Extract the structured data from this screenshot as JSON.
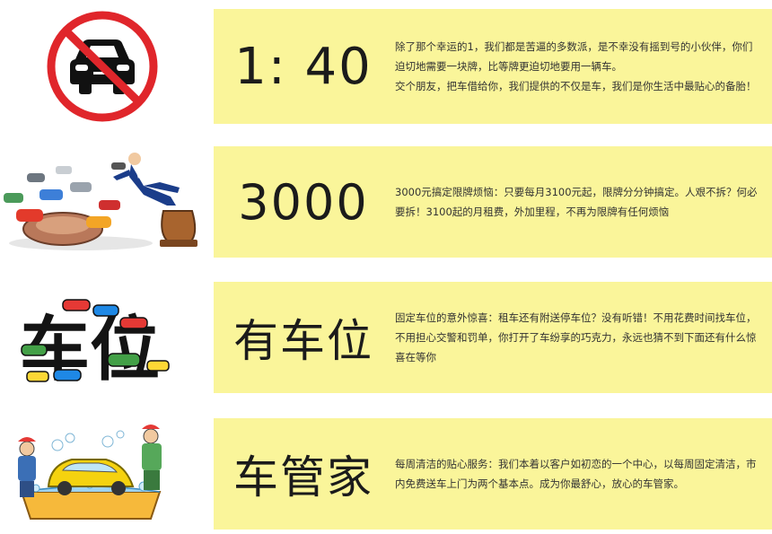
{
  "colors": {
    "card": "#faf59a",
    "no_sign_red": "#e0262b",
    "text": "#1b1b1b"
  },
  "rows": [
    {
      "headline": "1: 40",
      "icon": "no-car-sign-icon",
      "lines": [
        "除了那个幸运的1，我们都是苦逼的多数派，是不幸没有摇到号的小伙伴，你们迫切地需要一块牌，比等牌更迫切地要用一辆车。",
        "交个朋友，把车借给你，我们提供的不仅是车，我们是你生活中最贴心的备胎！"
      ]
    },
    {
      "headline": "3000",
      "icon": "car-stamp-illustration",
      "lines": [
        "3000元搞定限牌烦恼：只要每月3100元起，限牌分分钟搞定。人艰不拆？何必要拆！3100起的月租费，外加里程，不再为限牌有任何烦恼"
      ]
    },
    {
      "headline": "有车位",
      "icon": "parking-space-illustration",
      "lines": [
        "固定车位的意外惊喜：租车还有附送停车位？没有听错！不用花费时间找车位，不用担心交警和罚单，你打开了车纷享的巧克力，永远也猜不到下面还有什么惊喜在等你"
      ]
    },
    {
      "headline": "车管家",
      "icon": "car-wash-illustration",
      "lines": [
        "每周清洁的贴心服务：我们本着以客户如初恋的一个中心，以每周固定清洁，市内免费送车上门为两个基本点。成为你最舒心，放心的车管家。"
      ]
    }
  ],
  "illustration_text": {
    "parking_chars": "车位"
  }
}
